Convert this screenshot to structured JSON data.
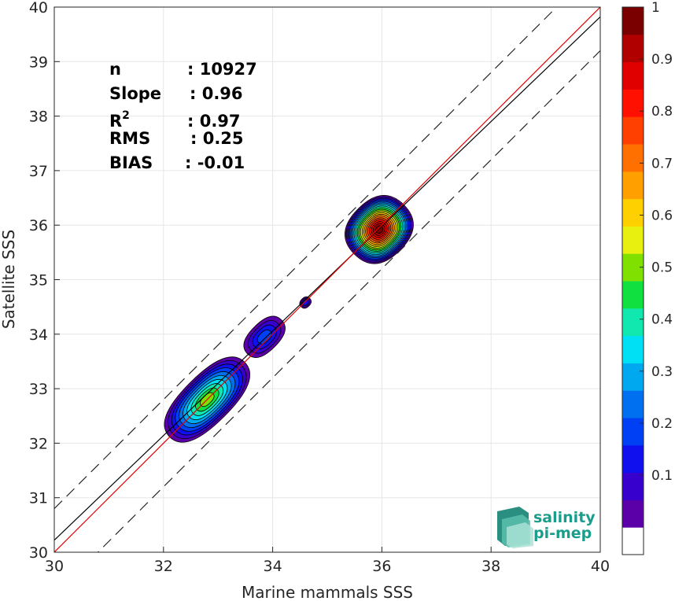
{
  "chart_data": {
    "type": "contour-density-scatter",
    "xlabel": "Marine mammals SSS",
    "ylabel": "Satellite SSS",
    "xlim": [
      30,
      40
    ],
    "ylim": [
      30,
      40
    ],
    "xticks": [
      30,
      32,
      34,
      36,
      38,
      40
    ],
    "yticks": [
      30,
      31,
      32,
      33,
      34,
      35,
      36,
      37,
      38,
      39,
      40
    ],
    "grid": true,
    "stats": [
      {
        "label": "n",
        "value": ": 10927"
      },
      {
        "label": "Slope",
        "value": ": 0.96"
      },
      {
        "label": "R",
        "sup": "2",
        "value": ": 0.97"
      },
      {
        "label": "RMS",
        "value": ": 0.25"
      },
      {
        "label": "BIAS",
        "value": ": -0.01"
      }
    ],
    "lines": {
      "one_to_one": {
        "slope": 1,
        "intercept": 0,
        "color": "#e00000"
      },
      "fit": {
        "slope": 0.96,
        "intercept": 1.42,
        "color": "#000000"
      },
      "bounds": [
        {
          "slope": 1,
          "intercept": 0.8
        },
        {
          "slope": 1,
          "intercept": -0.8
        }
      ]
    },
    "clusters": [
      {
        "cx": 32.8,
        "cy": 32.8,
        "peak": 0.55
      },
      {
        "cx": 35.95,
        "cy": 35.92,
        "peak": 1.0
      },
      {
        "cx": 33.85,
        "cy": 33.95,
        "peak": 0.2
      },
      {
        "cx": 34.6,
        "cy": 34.58,
        "peak": 0.15
      }
    ],
    "colorbar": {
      "range": [
        0,
        1
      ],
      "tick_labels": [
        "0.1",
        "0.2",
        "0.3",
        "0.4",
        "0.5",
        "0.6",
        "0.7",
        "0.8",
        "0.9",
        "1"
      ],
      "tick_values": [
        0.1,
        0.2,
        0.3,
        0.4,
        0.5,
        0.6,
        0.7,
        0.8,
        0.9,
        1.0
      ],
      "colors": [
        "#ffffff",
        "#5b00a8",
        "#3700cc",
        "#1010ee",
        "#0040f5",
        "#0070f0",
        "#00a8f0",
        "#00e0f5",
        "#10e8b0",
        "#10e040",
        "#80e000",
        "#e8f010",
        "#ffd000",
        "#ffa000",
        "#ff7000",
        "#ff4000",
        "#ff1000",
        "#e00000",
        "#b00000",
        "#7a0000"
      ]
    }
  },
  "logo": {
    "line1": "salinity",
    "line2": "pi-mep"
  }
}
